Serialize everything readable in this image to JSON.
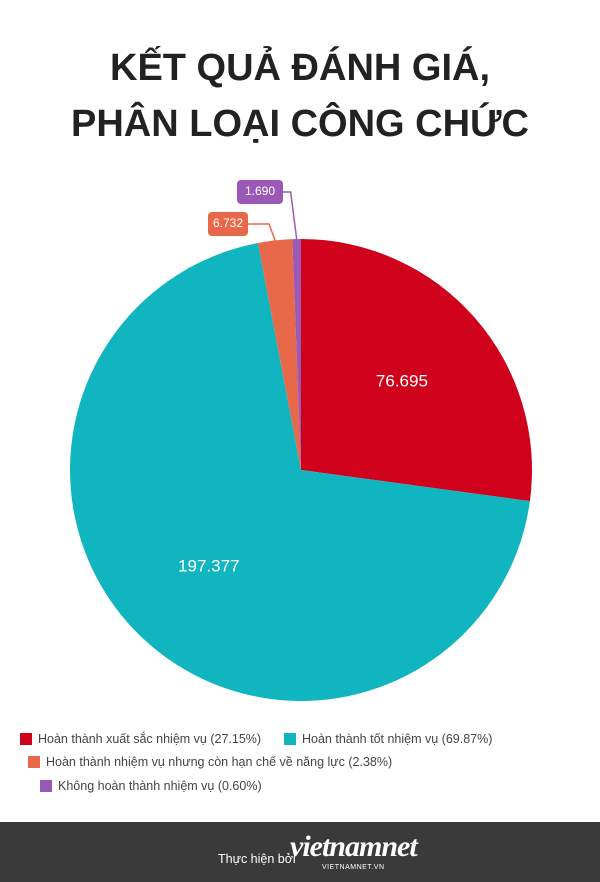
{
  "chart_data": {
    "type": "pie",
    "title": "KẾT QUẢ ĐÁNH GIÁ, PHÂN LOẠI CÔNG CHỨC",
    "categories": [
      "Hoàn thành xuất sắc nhiệm vụ (27.15%)",
      "Hoàn thành tốt nhiệm vụ (69.87%)",
      "Hoàn thành nhiệm vụ nhưng còn hạn chế về năng lực (2.38%)",
      "Không hoàn thành nhiệm vụ (0.60%)"
    ],
    "values": [
      76695,
      197377,
      6732,
      1690
    ],
    "value_labels": [
      "76.695",
      "197.377",
      "6.732",
      "1.690"
    ],
    "colors": [
      "#d0021b",
      "#10b5bf",
      "#e8694a",
      "#9b59b6"
    ]
  },
  "footer": {
    "credit": "Thực hiện bởi",
    "logo": "vietnamnet",
    "logo_sub": "VIETNAMNET.VN"
  }
}
